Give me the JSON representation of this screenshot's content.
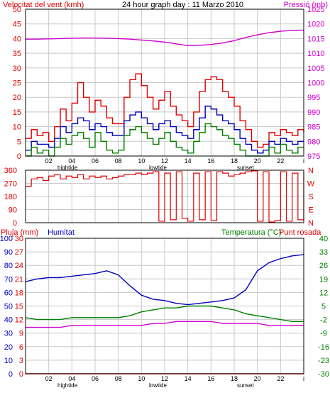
{
  "header": {
    "wind_title": "Velocitat del vent (kmh)",
    "graph_title": "24 hour graph day : 11 Marzo 2010",
    "pressure_title": "Pressió (mb)"
  },
  "lower_header": {
    "rain_label": "Pluja (mm)",
    "humidity_label": "Humitat",
    "temp_label": "Temperatura (°C)",
    "dew_label": "Punt rosada"
  },
  "colors": {
    "wind_gust": "#e00000",
    "wind_avg_blue": "#0000c0",
    "wind_green": "#008000",
    "pressure": "#d000d0",
    "direction": "#e00000",
    "humidity": "#0000c0",
    "temperature": "#008000",
    "dew": "#d000d0",
    "rain": "#e00000",
    "grid": "#c8c8c8"
  },
  "x_axis": {
    "ticks": [
      "02",
      "04",
      "06",
      "08",
      "10",
      "12",
      "14",
      "16",
      "18",
      "20",
      "22",
      "i"
    ],
    "events": [
      "hightide",
      "lowtide",
      "sunset"
    ]
  },
  "chart_data": [
    {
      "type": "line",
      "title": "Velocitat del vent (kmh) / Pressió (mb)",
      "x_unit": "hour",
      "x_range": [
        0,
        24
      ],
      "ylim": [
        0,
        50
      ],
      "y_ticks": [
        "0",
        "5",
        "10",
        "15",
        "20",
        "25",
        "30",
        "35",
        "40",
        "45",
        "50"
      ],
      "y2lim": [
        975,
        1025
      ],
      "y2_ticks": [
        "975",
        "980",
        "985",
        "990",
        "995",
        "1000",
        "1005",
        "1010",
        "1015",
        "1020",
        "1025"
      ],
      "series": [
        {
          "name": "Velocitat del vent (kmh)",
          "axis": "y",
          "color_key": "wind_gust",
          "x": [
            0,
            0.5,
            1,
            1.5,
            2,
            2.5,
            3,
            3.5,
            4,
            4.5,
            5,
            5.5,
            6,
            6.5,
            7,
            7.5,
            8,
            8.5,
            9,
            9.5,
            10,
            10.5,
            11,
            11.5,
            12,
            12.5,
            13,
            13.5,
            14,
            14.5,
            15,
            15.5,
            16,
            16.5,
            17,
            17.5,
            18,
            18.5,
            19,
            19.5,
            20,
            20.5,
            21,
            21.5,
            22,
            22.5,
            23,
            23.5,
            24
          ],
          "values": [
            6,
            9,
            7,
            8,
            5,
            10,
            16,
            12,
            18,
            25,
            20,
            15,
            19,
            17,
            13,
            11,
            11,
            20,
            26,
            28,
            24,
            20,
            16,
            19,
            22,
            17,
            14,
            12,
            10,
            15,
            22,
            26,
            27,
            26,
            22,
            20,
            17,
            12,
            9,
            5,
            3,
            4,
            8,
            7,
            9,
            8,
            7,
            9,
            8
          ]
        },
        {
          "name": "Vent mitjà",
          "axis": "y",
          "color_key": "wind_avg_blue",
          "x": [
            0,
            0.5,
            1,
            1.5,
            2,
            2.5,
            3,
            3.5,
            4,
            4.5,
            5,
            5.5,
            6,
            6.5,
            7,
            7.5,
            8,
            8.5,
            9,
            9.5,
            10,
            10.5,
            11,
            11.5,
            12,
            12.5,
            13,
            13.5,
            14,
            14.5,
            15,
            15.5,
            16,
            16.5,
            17,
            17.5,
            18,
            18.5,
            19,
            19.5,
            20,
            20.5,
            21,
            21.5,
            22,
            22.5,
            23,
            23.5,
            24
          ],
          "values": [
            2,
            5,
            4,
            4,
            3,
            6,
            10,
            8,
            11,
            13,
            12,
            9,
            11,
            10,
            8,
            7,
            7,
            12,
            14,
            15,
            13,
            11,
            9,
            11,
            12,
            10,
            8,
            7,
            6,
            9,
            13,
            17,
            16,
            14,
            12,
            11,
            9,
            6,
            4,
            2,
            1,
            2,
            5,
            4,
            6,
            5,
            4,
            5,
            5
          ]
        },
        {
          "name": "Vent mínim",
          "axis": "y",
          "color_key": "wind_green",
          "x": [
            0,
            0.5,
            1,
            1.5,
            2,
            2.5,
            3,
            3.5,
            4,
            4.5,
            5,
            5.5,
            6,
            6.5,
            7,
            7.5,
            8,
            8.5,
            9,
            9.5,
            10,
            10.5,
            11,
            11.5,
            12,
            12.5,
            13,
            13.5,
            14,
            14.5,
            15,
            15.5,
            16,
            16.5,
            17,
            17.5,
            18,
            18.5,
            19,
            19.5,
            20,
            20.5,
            21,
            21.5,
            22,
            22.5,
            23,
            23.5,
            24
          ],
          "values": [
            0,
            3,
            1,
            2,
            0,
            3,
            6,
            4,
            7,
            8,
            6,
            3,
            8,
            5,
            2,
            1,
            2,
            7,
            9,
            10,
            8,
            6,
            4,
            6,
            8,
            5,
            3,
            2,
            1,
            5,
            8,
            11,
            10,
            9,
            7,
            6,
            4,
            2,
            0,
            0,
            0,
            0,
            3,
            1,
            4,
            2,
            1,
            3,
            3
          ]
        },
        {
          "name": "Pressió (mb)",
          "axis": "y2",
          "color_key": "pressure",
          "x": [
            0,
            1,
            2,
            3,
            4,
            5,
            6,
            7,
            8,
            9,
            10,
            11,
            12,
            13,
            14,
            15,
            16,
            17,
            18,
            19,
            20,
            21,
            22,
            23,
            24
          ],
          "values": [
            1014.8,
            1014.8,
            1014.9,
            1015.0,
            1015.1,
            1015.2,
            1015.2,
            1015.1,
            1015.0,
            1014.8,
            1014.5,
            1014.2,
            1013.8,
            1013.2,
            1012.6,
            1012.7,
            1013.0,
            1013.5,
            1014.3,
            1015.4,
            1016.3,
            1017.0,
            1017.5,
            1017.8,
            1017.9
          ]
        }
      ]
    },
    {
      "type": "scatter",
      "title": "Direcció del vent",
      "x_unit": "hour",
      "x_range": [
        0,
        24
      ],
      "ylim": [
        0,
        360
      ],
      "y_ticks": [
        "0",
        "90",
        "180",
        "270",
        "360"
      ],
      "y2_labels": [
        "N",
        "W",
        "S",
        "E",
        "N"
      ],
      "series": [
        {
          "name": "Direcció",
          "color_key": "direction",
          "x": [
            0,
            0.5,
            1,
            1.5,
            2,
            2.5,
            3,
            3.5,
            4,
            4.5,
            5,
            5.5,
            6,
            6.5,
            7,
            7.5,
            8,
            8.5,
            9,
            9.5,
            10,
            10.5,
            11,
            11.5,
            12,
            12.5,
            13,
            13.5,
            14,
            14.5,
            15,
            15.5,
            16,
            16.5,
            17,
            17.5,
            18,
            18.5,
            19,
            19.5,
            20,
            20.5,
            21,
            21.5,
            22,
            22.5,
            23,
            23.5,
            24
          ],
          "values": [
            250,
            300,
            310,
            290,
            320,
            330,
            300,
            320,
            310,
            330,
            300,
            320,
            310,
            320,
            300,
            310,
            320,
            330,
            330,
            340,
            330,
            340,
            350,
            10,
            340,
            20,
            350,
            30,
            10,
            340,
            20,
            350,
            15,
            350,
            340,
            320,
            330,
            340,
            350,
            355,
            10,
            350,
            5,
            15,
            350,
            10,
            340,
            20,
            350
          ]
        }
      ]
    },
    {
      "type": "line",
      "title": "Pluja (mm) / Humitat / Temperatura (°C) / Punt rosada",
      "x_unit": "hour",
      "x_range": [
        0,
        24
      ],
      "ylim": [
        0,
        100
      ],
      "y_ticks": [
        "0",
        "10",
        "20",
        "30",
        "40",
        "50",
        "60",
        "70",
        "80",
        "90",
        "100"
      ],
      "rain_ylim": [
        0,
        30
      ],
      "rain_ticks": [
        "0",
        "3",
        "6",
        "9",
        "12",
        "15",
        "18",
        "21",
        "24",
        "27",
        "30"
      ],
      "y2lim": [
        -30,
        40
      ],
      "y2_ticks": [
        "-30",
        "-23",
        "-16",
        "-9",
        "-2",
        "5",
        "12",
        "19",
        "26",
        "33",
        "40"
      ],
      "series": [
        {
          "name": "Humitat",
          "axis": "y",
          "color_key": "humidity",
          "x": [
            0,
            1,
            2,
            3,
            4,
            5,
            6,
            7,
            8,
            9,
            10,
            11,
            12,
            13,
            14,
            15,
            16,
            17,
            18,
            19,
            20,
            21,
            22,
            23,
            24
          ],
          "values": [
            68,
            70,
            71,
            71,
            72,
            73,
            74,
            76,
            73,
            65,
            58,
            55,
            54,
            52,
            51,
            52,
            53,
            54,
            56,
            62,
            76,
            82,
            85,
            87,
            88
          ]
        },
        {
          "name": "Temperatura (°C)",
          "axis": "y2",
          "color_key": "temperature",
          "x": [
            0,
            1,
            2,
            3,
            4,
            5,
            6,
            7,
            8,
            9,
            10,
            11,
            12,
            13,
            14,
            15,
            16,
            17,
            18,
            19,
            20,
            21,
            22,
            23,
            24
          ],
          "values": [
            -1,
            -2,
            -2,
            -2,
            -1,
            -1,
            -1,
            -1,
            -1,
            0,
            2,
            3,
            4,
            4,
            5,
            5,
            5,
            4,
            3,
            1,
            0,
            -1,
            -2,
            -3,
            -3
          ]
        },
        {
          "name": "Punt rosada",
          "axis": "y2",
          "color_key": "dew",
          "x": [
            0,
            1,
            2,
            3,
            4,
            5,
            6,
            7,
            8,
            9,
            10,
            11,
            12,
            13,
            14,
            15,
            16,
            17,
            18,
            19,
            20,
            21,
            22,
            23,
            24
          ],
          "values": [
            -6,
            -6,
            -6,
            -6,
            -5,
            -5,
            -5,
            -5,
            -5,
            -5,
            -5,
            -4,
            -4,
            -3,
            -3,
            -3,
            -3,
            -4,
            -4,
            -4,
            -4,
            -5,
            -5,
            -5,
            -5
          ]
        },
        {
          "name": "Pluja (mm)",
          "axis": "rain",
          "color_key": "rain",
          "x": [
            0,
            24
          ],
          "values": [
            0,
            0
          ]
        }
      ]
    }
  ]
}
